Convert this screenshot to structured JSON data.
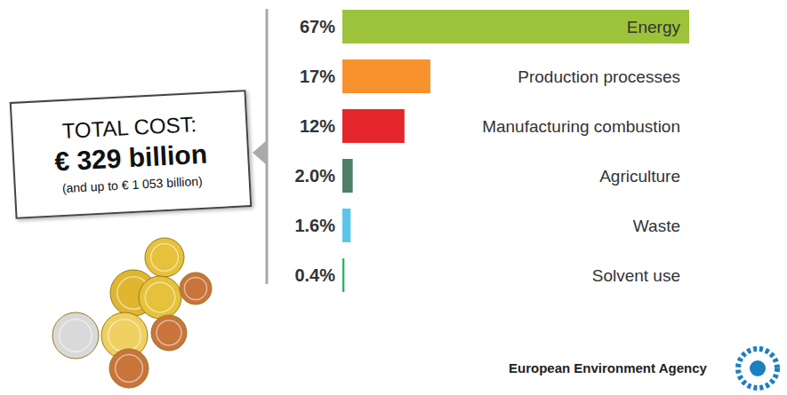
{
  "chart_data": {
    "type": "bar",
    "orientation": "horizontal",
    "categories": [
      "Energy",
      "Production processes",
      "Manufacturing combustion",
      "Agriculture",
      "Waste",
      "Solvent use"
    ],
    "values": [
      67,
      17,
      12,
      2.0,
      1.6,
      0.4
    ],
    "value_labels": [
      "67%",
      "17%",
      "12%",
      "2.0%",
      "1.6%",
      "0.4%"
    ],
    "colors": [
      "#9dc33b",
      "#f7922d",
      "#e2262b",
      "#4f7f67",
      "#5cc5ea",
      "#2db36b"
    ],
    "xlim": [
      0,
      67
    ],
    "tick_labels": false,
    "data_labels": true,
    "annotations": [
      "TOTAL COST:",
      "€ 329 billion",
      "(and up to € 1 053 billion)",
      "European Environment Agency"
    ]
  }
}
